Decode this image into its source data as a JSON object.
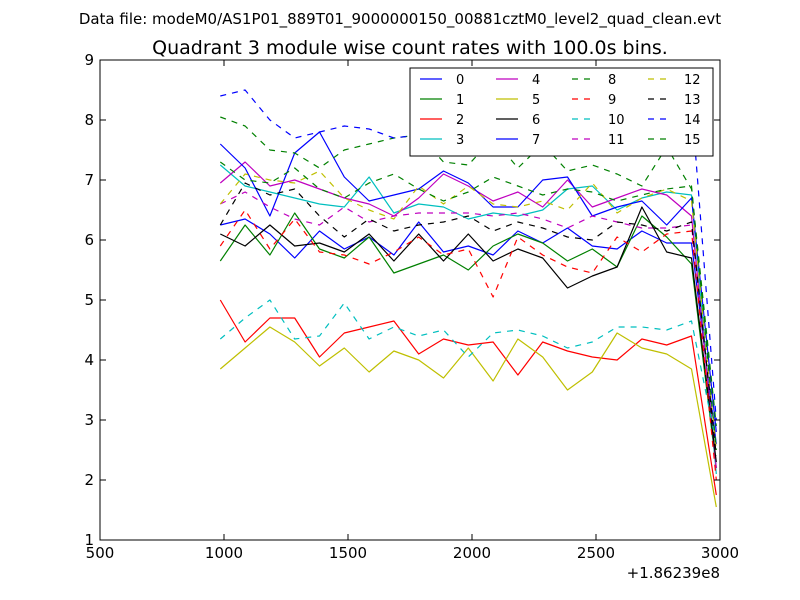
{
  "figure": {
    "suptitle": "Data file: modeM0/AS1P01_889T01_9000000150_00881cztM0_level2_quad_clean.evt"
  },
  "chart_data": {
    "type": "line",
    "title": "Quadrant 3 module wise count rates with 100.0s bins.",
    "xlabel": "",
    "ylabel": "",
    "x_offset_label": "+1.86239e8",
    "xlim": [
      500,
      3000
    ],
    "ylim": [
      1,
      9
    ],
    "xticks": [
      500,
      1000,
      1500,
      2000,
      2500,
      3000
    ],
    "xtick_labels": [
      "500",
      "1000",
      "1500",
      "2000",
      "2500",
      "3000"
    ],
    "yticks": [
      1,
      2,
      3,
      4,
      5,
      6,
      7,
      8,
      9
    ],
    "ytick_labels": [
      "1",
      "2",
      "3",
      "4",
      "5",
      "6",
      "7",
      "8",
      "9"
    ],
    "grid": false,
    "legend_position": "top-right",
    "legend_columns": 4,
    "x": [
      985,
      1085,
      1185,
      1285,
      1385,
      1485,
      1585,
      1685,
      1785,
      1885,
      1985,
      2085,
      2185,
      2285,
      2385,
      2485,
      2585,
      2685,
      2785,
      2885,
      2985
    ],
    "series": [
      {
        "name": "0",
        "color": "#0000ff",
        "dash": "solid",
        "values": [
          6.25,
          6.35,
          6.1,
          5.7,
          6.15,
          5.85,
          6.05,
          5.75,
          6.3,
          5.8,
          5.9,
          5.75,
          6.15,
          5.95,
          6.2,
          5.9,
          5.85,
          6.15,
          5.95,
          5.95,
          2.6
        ]
      },
      {
        "name": "1",
        "color": "#008000",
        "dash": "solid",
        "values": [
          5.65,
          6.25,
          5.75,
          6.45,
          5.85,
          5.7,
          6.05,
          5.45,
          5.6,
          5.75,
          5.5,
          5.9,
          6.1,
          5.95,
          5.65,
          5.85,
          5.55,
          6.4,
          6.05,
          5.6,
          2.2
        ]
      },
      {
        "name": "2",
        "color": "#ff0000",
        "dash": "solid",
        "values": [
          5.0,
          4.3,
          4.7,
          4.7,
          4.05,
          4.45,
          4.55,
          4.65,
          4.1,
          4.35,
          4.25,
          4.3,
          3.75,
          4.3,
          4.15,
          4.05,
          4.0,
          4.35,
          4.25,
          4.4,
          1.75
        ]
      },
      {
        "name": "3",
        "color": "#00bfbf",
        "dash": "solid",
        "values": [
          7.25,
          6.9,
          6.8,
          6.7,
          6.6,
          6.55,
          7.05,
          6.45,
          6.6,
          6.55,
          6.35,
          6.45,
          6.4,
          6.5,
          6.85,
          6.9,
          6.5,
          6.7,
          6.8,
          6.75,
          2.1
        ]
      },
      {
        "name": "4",
        "color": "#bf00bf",
        "dash": "solid",
        "values": [
          6.95,
          7.3,
          6.9,
          7.0,
          6.85,
          6.7,
          6.6,
          6.4,
          6.7,
          7.1,
          6.9,
          6.65,
          6.8,
          6.55,
          7.0,
          6.55,
          6.7,
          6.85,
          6.75,
          6.4,
          2.2
        ]
      },
      {
        "name": "5",
        "color": "#bfbf00",
        "dash": "solid",
        "values": [
          3.85,
          4.2,
          4.55,
          4.3,
          3.9,
          4.2,
          3.8,
          4.15,
          4.0,
          3.7,
          4.2,
          3.65,
          4.35,
          4.05,
          3.5,
          3.8,
          4.45,
          4.2,
          4.1,
          3.85,
          1.55
        ]
      },
      {
        "name": "6",
        "color": "#000000",
        "dash": "solid",
        "values": [
          6.1,
          5.9,
          6.25,
          5.9,
          5.95,
          5.8,
          6.1,
          5.65,
          6.1,
          5.65,
          6.1,
          5.65,
          5.85,
          5.7,
          5.2,
          5.4,
          5.55,
          6.55,
          5.8,
          5.7,
          2.3
        ]
      },
      {
        "name": "7",
        "color": "#0000ff",
        "dash": "solid",
        "values": [
          7.6,
          7.2,
          6.4,
          7.45,
          7.8,
          7.05,
          6.65,
          6.75,
          6.85,
          7.15,
          6.95,
          6.55,
          6.55,
          7.0,
          7.05,
          6.4,
          6.55,
          6.65,
          6.25,
          6.7,
          2.8
        ]
      },
      {
        "name": "8",
        "color": "#008000",
        "dash": "dashed",
        "values": [
          8.05,
          7.9,
          7.5,
          7.45,
          7.2,
          7.5,
          7.6,
          7.7,
          7.75,
          7.3,
          7.25,
          7.7,
          7.2,
          7.6,
          7.15,
          7.25,
          7.1,
          6.9,
          7.55,
          6.85,
          2.9
        ]
      },
      {
        "name": "9",
        "color": "#ff0000",
        "dash": "dashed",
        "values": [
          5.9,
          6.5,
          5.85,
          6.35,
          5.8,
          5.75,
          5.6,
          5.8,
          6.05,
          5.75,
          5.85,
          5.05,
          6.05,
          5.75,
          5.55,
          5.45,
          6.05,
          5.8,
          6.1,
          6.15,
          2.0
        ]
      },
      {
        "name": "10",
        "color": "#00bfbf",
        "dash": "dashed",
        "values": [
          4.35,
          4.7,
          5.0,
          4.35,
          4.4,
          4.95,
          4.35,
          4.55,
          4.4,
          4.5,
          4.05,
          4.45,
          4.5,
          4.4,
          4.2,
          4.3,
          4.55,
          4.55,
          4.5,
          4.65,
          2.6
        ]
      },
      {
        "name": "11",
        "color": "#bf00bf",
        "dash": "dashed",
        "values": [
          6.6,
          6.8,
          6.55,
          6.35,
          6.25,
          6.55,
          6.3,
          6.4,
          6.45,
          6.45,
          6.45,
          6.4,
          6.45,
          6.35,
          6.2,
          6.4,
          6.3,
          6.2,
          6.2,
          6.25,
          2.4
        ]
      },
      {
        "name": "12",
        "color": "#bfbf00",
        "dash": "dashed",
        "values": [
          6.6,
          7.1,
          7.0,
          6.95,
          7.15,
          6.7,
          6.5,
          6.35,
          6.9,
          6.6,
          6.9,
          6.6,
          6.55,
          6.65,
          6.5,
          6.95,
          6.45,
          6.7,
          6.85,
          6.65,
          2.5
        ]
      },
      {
        "name": "13",
        "color": "#000000",
        "dash": "dashed",
        "values": [
          6.25,
          6.95,
          6.75,
          6.85,
          6.4,
          6.05,
          6.35,
          6.15,
          6.25,
          6.3,
          6.4,
          6.15,
          6.3,
          6.2,
          6.05,
          6.0,
          6.3,
          6.25,
          6.15,
          6.3,
          2.4
        ]
      },
      {
        "name": "14",
        "color": "#0000ff",
        "dash": "dashed",
        "values": [
          8.4,
          8.5,
          8.0,
          7.7,
          7.8,
          7.9,
          7.85,
          7.7,
          7.75,
          7.8,
          7.75,
          7.9,
          7.8,
          7.7,
          7.75,
          7.9,
          7.8,
          7.75,
          8.05,
          8.3,
          3.0
        ]
      },
      {
        "name": "15",
        "color": "#008000",
        "dash": "dashed",
        "values": [
          7.3,
          7.0,
          6.95,
          7.2,
          6.85,
          6.7,
          6.95,
          7.1,
          6.85,
          6.65,
          6.8,
          7.05,
          6.9,
          6.75,
          6.85,
          6.8,
          6.65,
          6.75,
          6.85,
          6.9,
          2.5
        ]
      }
    ]
  }
}
